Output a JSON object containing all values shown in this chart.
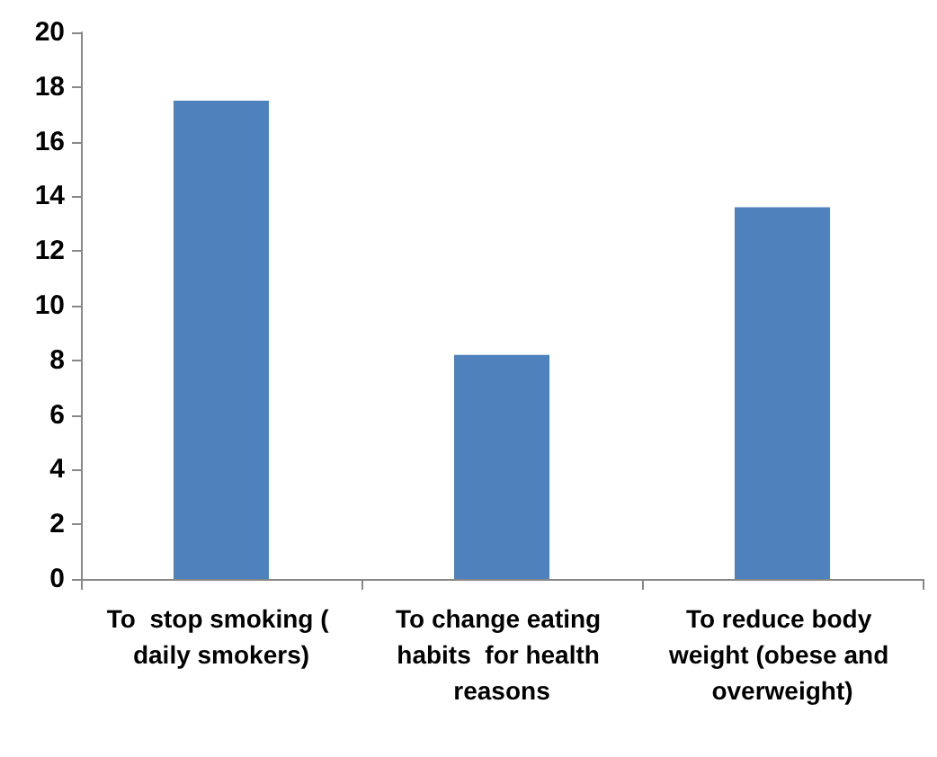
{
  "chart_data": {
    "type": "bar",
    "categories": [
      "To  stop smoking ( daily smokers)",
      "To change eating habits  for health reasons",
      "To reduce body weight (obese and overweight)"
    ],
    "values": [
      17.5,
      8.2,
      13.6
    ],
    "color": "#4f81bd",
    "ylim": [
      0,
      20
    ],
    "yticks": [
      0,
      2,
      4,
      6,
      8,
      10,
      12,
      14,
      16,
      18,
      20
    ],
    "grid": false
  }
}
